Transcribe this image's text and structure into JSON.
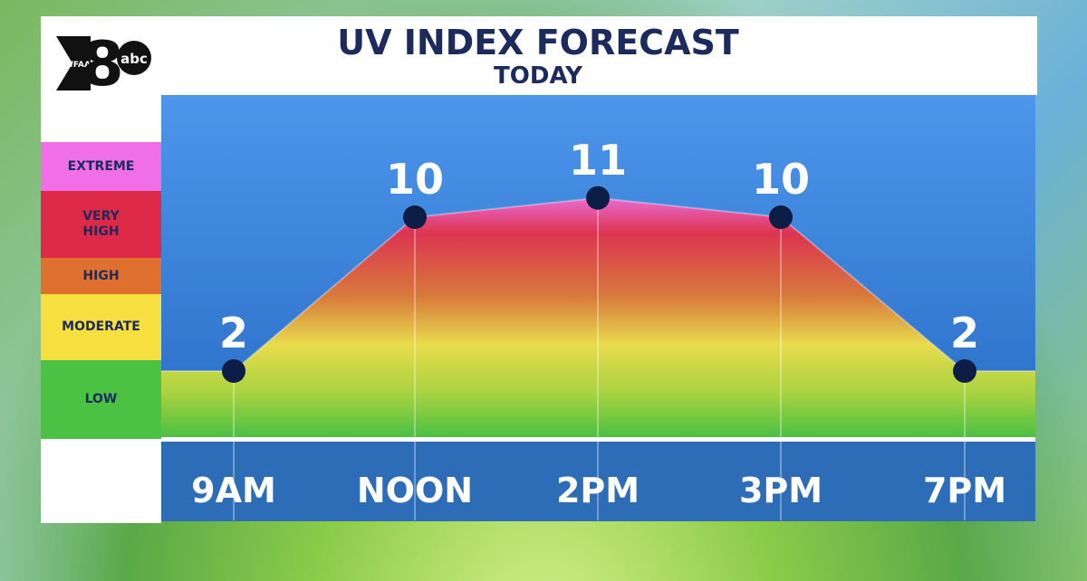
{
  "logo": {
    "station": "WFAA",
    "number": "8",
    "network": "abc"
  },
  "chart_data": {
    "type": "area",
    "title": "UV INDEX FORECAST",
    "subtitle": "TODAY",
    "categories": [
      "9AM",
      "NOON",
      "2PM",
      "3PM",
      "7PM"
    ],
    "values": [
      2,
      10,
      11,
      10,
      2
    ],
    "legend": [
      {
        "name": "EXTREME",
        "color": "#f06ee6"
      },
      {
        "name": "VERY HIGH",
        "color": "#de2a48"
      },
      {
        "name": "HIGH",
        "color": "#e07030"
      },
      {
        "name": "MODERATE",
        "color": "#f6e040"
      },
      {
        "name": "LOW",
        "color": "#4cc244"
      }
    ]
  }
}
